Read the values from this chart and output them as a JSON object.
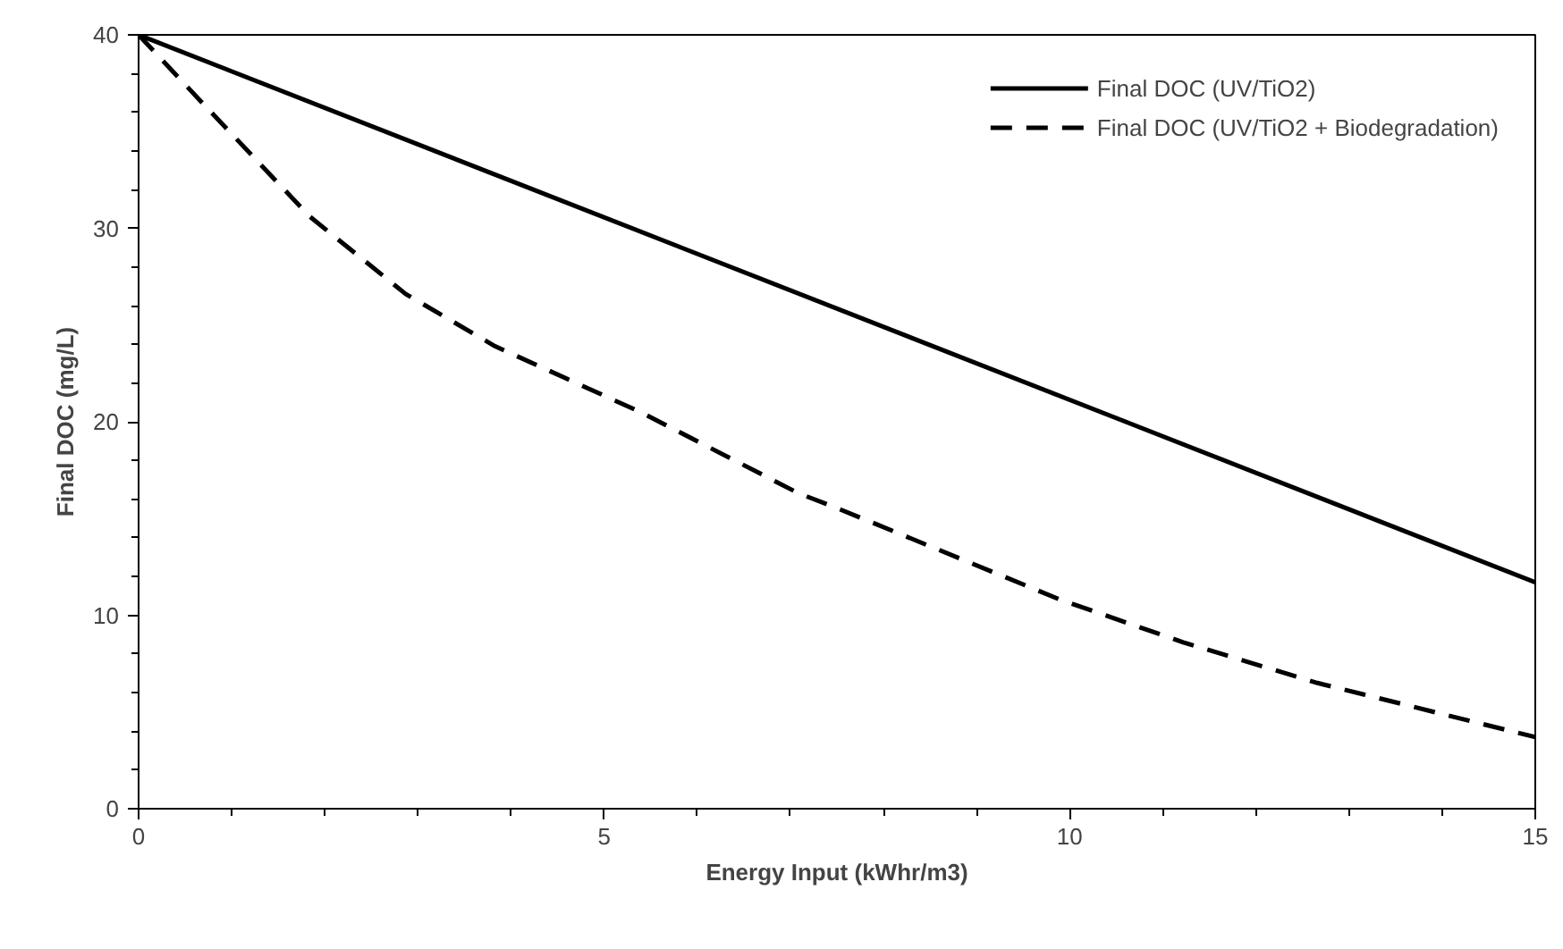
{
  "chart_data": {
    "type": "line",
    "xlabel": "Energy Input (kWhr/m3)",
    "ylabel": "Final DOC (mg/L)",
    "xlim": [
      0,
      15
    ],
    "ylim": [
      0,
      40
    ],
    "xticks": [
      0,
      {
        "value": 1,
        "label": null
      },
      {
        "value": 2,
        "label": null
      },
      {
        "value": 3,
        "label": null
      },
      {
        "value": 4,
        "label": null
      },
      5,
      {
        "value": 6,
        "label": null
      },
      {
        "value": 7,
        "label": null
      },
      {
        "value": 8,
        "label": null
      },
      {
        "value": 9,
        "label": null
      },
      10,
      {
        "value": 11,
        "label": null
      },
      {
        "value": 12,
        "label": null
      },
      {
        "value": 13,
        "label": null
      },
      {
        "value": 14,
        "label": null
      },
      15
    ],
    "yticks": [
      0,
      {
        "value": 2,
        "label": null
      },
      {
        "value": 4,
        "label": null
      },
      {
        "value": 6,
        "label": null
      },
      {
        "value": 8,
        "label": null
      },
      10,
      {
        "value": 12,
        "label": null
      },
      {
        "value": 14,
        "label": null
      },
      {
        "value": 16,
        "label": null
      },
      {
        "value": 18,
        "label": null
      },
      20,
      {
        "value": 22,
        "label": null
      },
      {
        "value": 24,
        "label": null
      },
      {
        "value": 26,
        "label": null
      },
      {
        "value": 28,
        "label": null
      },
      30,
      {
        "value": 32,
        "label": null
      },
      {
        "value": 34,
        "label": null
      },
      {
        "value": 36,
        "label": null
      },
      {
        "value": 38,
        "label": null
      },
      40
    ],
    "grid": false,
    "legend": "top right",
    "marker": "none",
    "series": [
      {
        "name": "Final DOC (UV/TiO2)",
        "color": "#000000",
        "line_style": "solid",
        "x": [
          0,
          15
        ],
        "values": [
          40,
          11.7
        ]
      },
      {
        "name": "Final DOC (UV/TiO2 + Biodegradation)",
        "color": "#000000",
        "line_style": "dashed",
        "x": [
          0,
          0.72,
          1.84,
          2.87,
          3.83,
          5.39,
          7.09,
          7.47,
          9.9,
          11.22,
          12.66,
          15
        ],
        "values": [
          40,
          36.3,
          30.6,
          26.6,
          23.9,
          20.5,
          16.3,
          15.6,
          10.8,
          8.6,
          6.5,
          3.7
        ]
      }
    ]
  }
}
